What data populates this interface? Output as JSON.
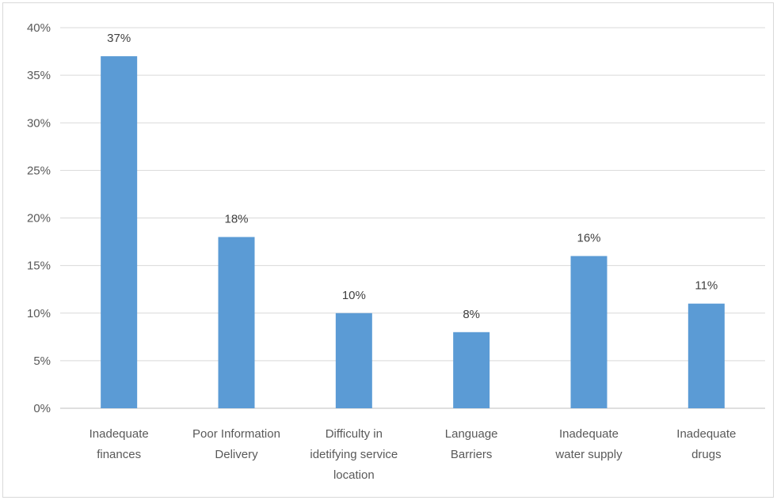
{
  "chart_data": {
    "type": "bar",
    "title": "",
    "xlabel": "",
    "ylabel": "",
    "categories": [
      "Inadequate finances",
      "Poor Information Delivery",
      "Difficulty in idetifying service location",
      "Language Barriers",
      "Inadequate water supply",
      "Inadequate drugs"
    ],
    "category_lines": [
      [
        "Inadequate",
        "finances"
      ],
      [
        "Poor Information",
        "Delivery"
      ],
      [
        "Difficulty in",
        "idetifying service",
        "location"
      ],
      [
        "Language",
        "Barriers"
      ],
      [
        "Inadequate",
        "water supply"
      ],
      [
        "Inadequate",
        "drugs"
      ]
    ],
    "series": [
      {
        "values": [
          37,
          18,
          10,
          8,
          16,
          11
        ]
      }
    ],
    "data_labels": [
      "37%",
      "18%",
      "10%",
      "8%",
      "16%",
      "11%"
    ],
    "ylim": [
      0,
      40
    ],
    "y_ticks": [
      0,
      5,
      10,
      15,
      20,
      25,
      30,
      35,
      40
    ],
    "y_tick_labels": [
      "0%",
      "5%",
      "10%",
      "15%",
      "20%",
      "25%",
      "30%",
      "35%",
      "40%"
    ],
    "grid": true,
    "legend": "none",
    "colors": {
      "bar": "#5b9bd5",
      "grid": "#d9d9d9",
      "axis": "#bfbfbf"
    }
  }
}
